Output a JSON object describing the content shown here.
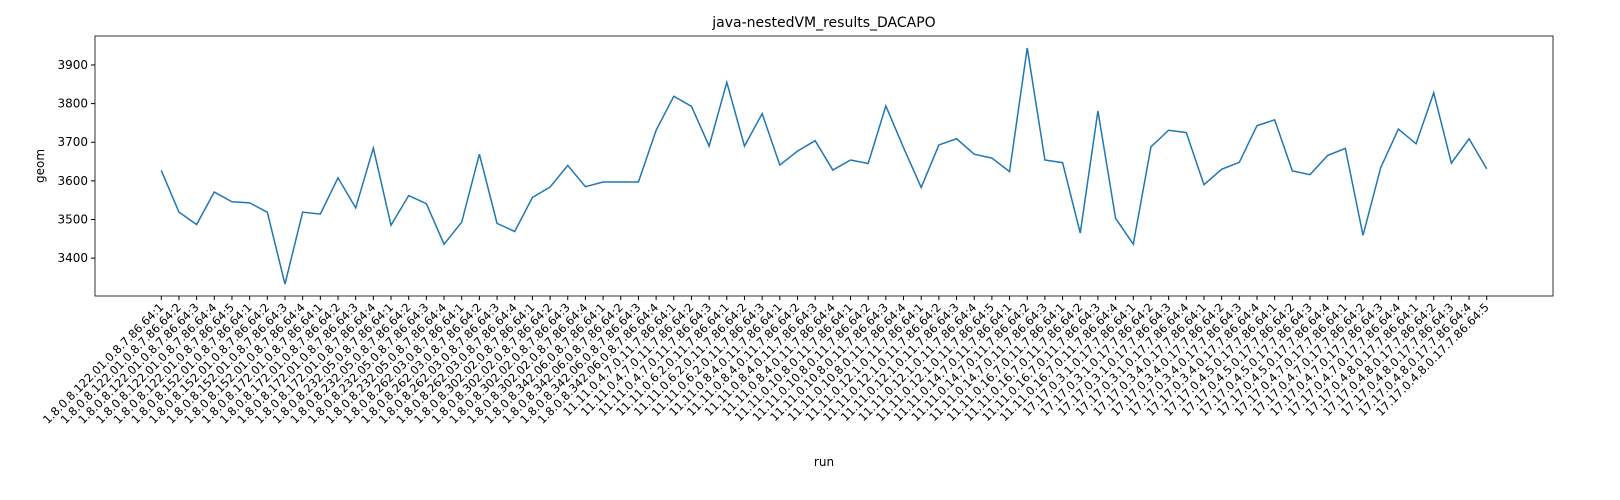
{
  "chart_data": {
    "type": "line",
    "title": "java-nestedVM_results_DACAPO",
    "x_label": "run",
    "y_label": "geom",
    "categories": [
      "1.8.0.8.122.01.0.8.7.86.64:1",
      "1.8.0.8.122.01.0.8.7.86.64:2",
      "1.8.0.8.122.01.0.8.7.86.64:3",
      "1.8.0.8.122.01.0.8.7.86.64:4",
      "1.8.0.8.122.01.0.8.7.86.64:5",
      "1.8.0.8.152.01.0.8.7.86.64:1",
      "1.8.0.8.152.01.0.8.7.86.64:2",
      "1.8.0.8.152.01.0.8.7.86.64:3",
      "1.8.0.8.152.01.0.8.7.86.64:4",
      "1.8.0.8.172.01.0.8.7.86.64:1",
      "1.8.0.8.172.01.0.8.7.86.64:2",
      "1.8.0.8.172.01.0.8.7.86.64:3",
      "1.8.0.8.172.01.0.8.7.86.64:4",
      "1.8.0.8.232.05.0.8.7.86.64:1",
      "1.8.0.8.232.05.0.8.7.86.64:2",
      "1.8.0.8.232.05.0.8.7.86.64:3",
      "1.8.0.8.232.05.0.8.7.86.64:4",
      "1.8.0.8.262.03.0.8.7.86.64:1",
      "1.8.0.8.262.03.0.8.7.86.64:2",
      "1.8.0.8.262.03.0.8.7.86.64:3",
      "1.8.0.8.262.03.0.8.7.86.64:4",
      "1.8.0.8.302.02.0.8.7.86.64:1",
      "1.8.0.8.302.02.0.8.7.86.64:2",
      "1.8.0.8.302.02.0.8.7.86.64:3",
      "1.8.0.8.302.02.0.8.7.86.64:4",
      "1.8.0.8.342.06.0.8.7.86.64:1",
      "1.8.0.8.342.06.0.8.7.86.64:2",
      "1.8.0.8.342.06.0.8.7.86.64:3",
      "1.8.0.8.342.06.0.8.7.86.64:4",
      "11.11.0.4.7.0.11.7.86.64:1",
      "11.11.0.4.7.0.11.7.86.64:2",
      "11.11.0.4.7.0.11.7.86.64:3",
      "11.11.0.6.2.0.11.7.86.64:1",
      "11.11.0.6.2.0.11.7.86.64:2",
      "11.11.0.6.2.0.11.7.86.64:3",
      "11.11.0.8.4.0.11.7.86.64:1",
      "11.11.0.8.4.0.11.7.86.64:2",
      "11.11.0.8.4.0.11.7.86.64:3",
      "11.11.0.8.4.0.11.7.86.64:4",
      "11.11.0.10.8.0.11.7.86.64:1",
      "11.11.0.10.8.0.11.7.86.64:2",
      "11.11.0.10.8.0.11.7.86.64:3",
      "11.11.0.10.8.0.11.7.86.64:4",
      "11.11.0.12.1.0.11.7.86.64:1",
      "11.11.0.12.1.0.11.7.86.64:2",
      "11.11.0.12.1.0.11.7.86.64:3",
      "11.11.0.12.1.0.11.7.86.64:4",
      "11.11.0.12.1.0.11.7.86.64:5",
      "11.11.0.14.7.0.11.7.86.64:1",
      "11.11.0.14.7.0.11.7.86.64:2",
      "11.11.0.14.7.0.11.7.86.64:3",
      "11.11.0.16.7.0.11.7.86.64:1",
      "11.11.0.16.7.0.11.7.86.64:2",
      "11.11.0.16.7.0.11.7.86.64:3",
      "11.11.0.16.7.0.11.7.86.64:4",
      "17.17.0.3.1.0.17.7.86.64:1",
      "17.17.0.3.1.0.17.7.86.64:2",
      "17.17.0.3.1.0.17.7.86.64:3",
      "17.17.0.3.1.0.17.7.86.64:4",
      "17.17.0.3.4.0.17.7.86.64:1",
      "17.17.0.3.4.0.17.7.86.64:2",
      "17.17.0.3.4.0.17.7.86.64:3",
      "17.17.0.3.4.0.17.7.86.64:4",
      "17.17.0.4.5.0.17.7.86.64:1",
      "17.17.0.4.5.0.17.7.86.64:2",
      "17.17.0.4.5.0.17.7.86.64:3",
      "17.17.0.4.5.0.17.7.86.64:4",
      "17.17.0.4.7.0.17.7.86.64:1",
      "17.17.0.4.7.0.17.7.86.64:2",
      "17.17.0.4.7.0.17.7.86.64:3",
      "17.17.0.4.7.0.17.7.86.64:4",
      "17.17.0.4.8.0.17.7.86.64:1",
      "17.17.0.4.8.0.17.7.86.64:2",
      "17.17.0.4.8.0.17.7.86.64:3",
      "17.17.0.4.8.0.17.7.86.64:4",
      "17.17.0.4.8.0.17.7.86.64:5"
    ],
    "series": [
      {
        "name": "geom",
        "color": "#1f77b4",
        "values": [
          3627,
          3519,
          3487,
          3571,
          3546,
          3543,
          3519,
          3333,
          3519,
          3514,
          3608,
          3530,
          3685,
          3485,
          3562,
          3541,
          3436,
          3493,
          3669,
          3490,
          3469,
          3557,
          3584,
          3640,
          3585,
          3597,
          3597,
          3597,
          3731,
          3819,
          3793,
          3690,
          3855,
          3690,
          3774,
          3641,
          3677,
          3704,
          3628,
          3654,
          3645,
          3794,
          3686,
          3583,
          3693,
          3709,
          3669,
          3659,
          3624,
          3944,
          3654,
          3647,
          3465,
          3781,
          3503,
          3436,
          3688,
          3731,
          3725,
          3590,
          3630,
          3648,
          3743,
          3758,
          3626,
          3616,
          3666,
          3684,
          3459,
          3634,
          3734,
          3696,
          3828,
          3646,
          3709,
          3631
        ]
      }
    ],
    "ylim": [
      3302,
      3975
    ],
    "yticks": [
      3400,
      3500,
      3600,
      3700,
      3800,
      3900
    ]
  }
}
